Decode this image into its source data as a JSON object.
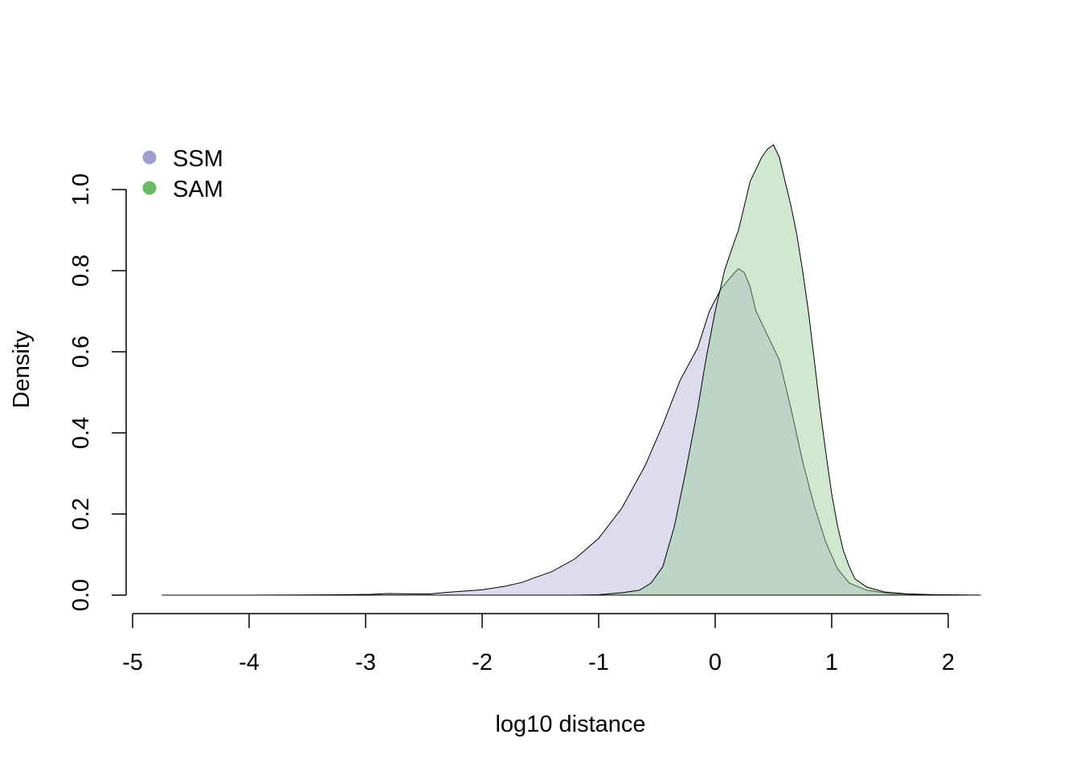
{
  "chart_data": {
    "type": "area",
    "title": "",
    "xlabel": "log10 distance",
    "ylabel": "Density",
    "xlim": [
      -5,
      2.3
    ],
    "ylim": [
      0,
      1.1
    ],
    "x_ticks": [
      -5,
      -4,
      -3,
      -2,
      -1,
      0,
      1,
      2
    ],
    "x_tick_labels": [
      "-5",
      "-4",
      "-3",
      "-2",
      "-1",
      "0",
      "1",
      "2"
    ],
    "y_ticks": [
      0,
      0.2,
      0.4,
      0.6,
      0.8,
      1.0
    ],
    "y_tick_labels": [
      "0.0",
      "0.2",
      "0.4",
      "0.6",
      "0.8",
      "1.0"
    ],
    "grid": false,
    "legend_position": "top-left",
    "legend": [
      "SSM",
      "SAM"
    ],
    "series": [
      {
        "name": "SSM",
        "color": "#9f9fcf",
        "fill": "#dcdcee",
        "points": [
          [
            -4.75,
            0.0
          ],
          [
            -4.0,
            0.0
          ],
          [
            -3.2,
            0.001
          ],
          [
            -2.95,
            0.002
          ],
          [
            -2.8,
            0.004
          ],
          [
            -2.6,
            0.003
          ],
          [
            -2.45,
            0.003
          ],
          [
            -2.3,
            0.007
          ],
          [
            -2.0,
            0.013
          ],
          [
            -1.8,
            0.022
          ],
          [
            -1.65,
            0.032
          ],
          [
            -1.55,
            0.043
          ],
          [
            -1.4,
            0.058
          ],
          [
            -1.2,
            0.09
          ],
          [
            -1.0,
            0.14
          ],
          [
            -0.8,
            0.215
          ],
          [
            -0.6,
            0.32
          ],
          [
            -0.45,
            0.42
          ],
          [
            -0.3,
            0.53
          ],
          [
            -0.15,
            0.61
          ],
          [
            -0.05,
            0.7
          ],
          [
            0.05,
            0.755
          ],
          [
            0.15,
            0.79
          ],
          [
            0.2,
            0.805
          ],
          [
            0.25,
            0.795
          ],
          [
            0.3,
            0.76
          ],
          [
            0.35,
            0.7
          ],
          [
            0.45,
            0.64
          ],
          [
            0.55,
            0.58
          ],
          [
            0.65,
            0.46
          ],
          [
            0.75,
            0.33
          ],
          [
            0.85,
            0.22
          ],
          [
            0.95,
            0.13
          ],
          [
            1.05,
            0.065
          ],
          [
            1.15,
            0.03
          ],
          [
            1.3,
            0.012
          ],
          [
            1.5,
            0.004
          ],
          [
            1.8,
            0.001
          ],
          [
            2.2,
            0.0
          ]
        ]
      },
      {
        "name": "SAM",
        "color": "#6aba6a",
        "fill": "#c9e6c9",
        "points": [
          [
            -1.2,
            0.0
          ],
          [
            -1.0,
            0.001
          ],
          [
            -0.8,
            0.006
          ],
          [
            -0.65,
            0.012
          ],
          [
            -0.55,
            0.03
          ],
          [
            -0.45,
            0.07
          ],
          [
            -0.35,
            0.17
          ],
          [
            -0.25,
            0.31
          ],
          [
            -0.15,
            0.46
          ],
          [
            -0.08,
            0.58
          ],
          [
            0.0,
            0.7
          ],
          [
            0.08,
            0.8
          ],
          [
            0.15,
            0.86
          ],
          [
            0.2,
            0.9
          ],
          [
            0.25,
            0.96
          ],
          [
            0.3,
            1.02
          ],
          [
            0.35,
            1.05
          ],
          [
            0.4,
            1.08
          ],
          [
            0.45,
            1.1
          ],
          [
            0.5,
            1.11
          ],
          [
            0.55,
            1.08
          ],
          [
            0.6,
            1.02
          ],
          [
            0.65,
            0.96
          ],
          [
            0.7,
            0.89
          ],
          [
            0.75,
            0.8
          ],
          [
            0.8,
            0.7
          ],
          [
            0.85,
            0.58
          ],
          [
            0.9,
            0.46
          ],
          [
            0.95,
            0.35
          ],
          [
            1.0,
            0.25
          ],
          [
            1.05,
            0.17
          ],
          [
            1.1,
            0.11
          ],
          [
            1.15,
            0.07
          ],
          [
            1.2,
            0.04
          ],
          [
            1.3,
            0.02
          ],
          [
            1.45,
            0.008
          ],
          [
            1.65,
            0.003
          ],
          [
            1.9,
            0.001
          ],
          [
            2.28,
            0.0
          ]
        ]
      }
    ]
  }
}
